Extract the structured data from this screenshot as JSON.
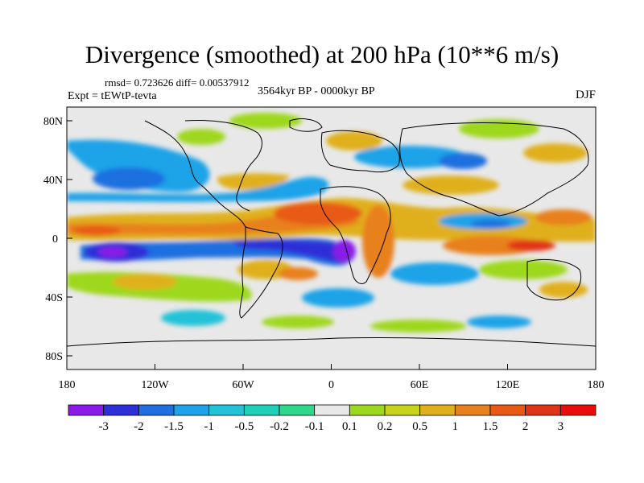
{
  "title": "Divergence (smoothed) at 200 hPa (10**6 m/s)",
  "stats": "rmsd= 0.723626 diff= 0.00537912",
  "experiment": "Expt = tEWtP-tevta",
  "period": "3564kyr BP - 0000kyr BP",
  "season": "DJF",
  "lat_ticks": [
    "80N",
    "40N",
    "0",
    "40S",
    "80S"
  ],
  "lon_ticks": [
    "180",
    "120W",
    "60W",
    "0",
    "60E",
    "120E",
    "180"
  ],
  "colorbar": {
    "labels": [
      "-3",
      "-2",
      "-1.5",
      "-1",
      "-0.5",
      "-0.2",
      "-0.1",
      "0.1",
      "0.2",
      "0.5",
      "1",
      "1.5",
      "2",
      "3"
    ],
    "colors": [
      "#8a1be8",
      "#2f2fd8",
      "#1f6fe0",
      "#1ea3e8",
      "#22c2d8",
      "#1fd0b8",
      "#2ed88a",
      "#e8e8e8",
      "#9ed81e",
      "#c8d31c",
      "#e0b01a",
      "#e8801e",
      "#e85a14",
      "#e03418",
      "#e80c0c"
    ]
  },
  "colors": {
    "background": "#e8e8e8",
    "coastline": "#000000"
  }
}
